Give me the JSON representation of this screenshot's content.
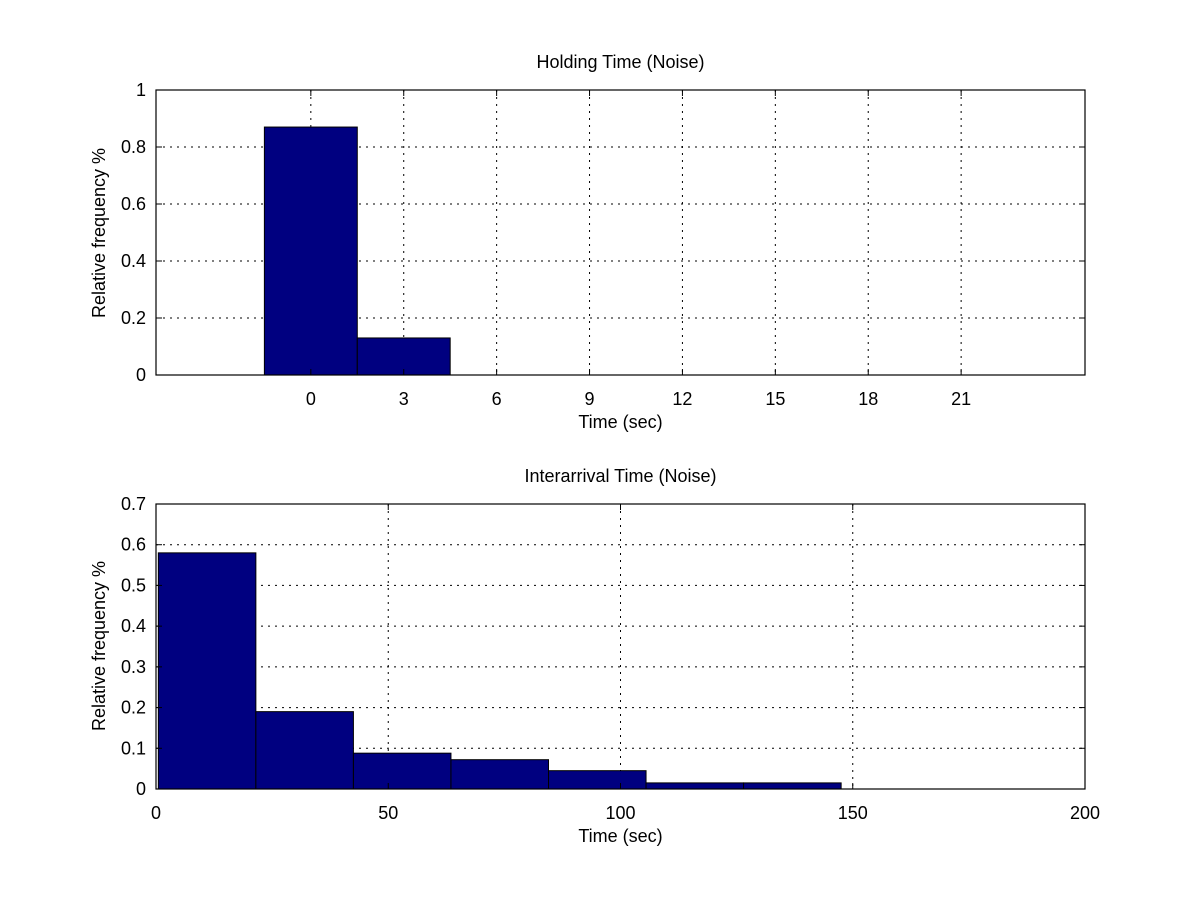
{
  "chart_data": [
    {
      "type": "bar",
      "title": "Holding Time (Noise)",
      "xlabel": "Time (sec)",
      "ylabel": "Relative frequency %",
      "xlim": [
        -5,
        25
      ],
      "ylim": [
        0,
        1
      ],
      "xticks": [
        0,
        3,
        6,
        9,
        12,
        15,
        18,
        21
      ],
      "yticks": [
        0,
        0.2,
        0.4,
        0.6,
        0.8,
        1
      ],
      "ytick_labels": [
        "0",
        "0.2",
        "0.4",
        "0.6",
        "0.8",
        "1"
      ],
      "grid": true,
      "bar_color": "#000080",
      "bin_width": 3,
      "bin_centers": [
        0,
        3
      ],
      "values": [
        0.87,
        0.13
      ]
    },
    {
      "type": "bar",
      "title": "Interarrival Time (Noise)",
      "xlabel": "Time (sec)",
      "ylabel": "Relative frequency %",
      "xlim": [
        0,
        200
      ],
      "ylim": [
        0,
        0.7
      ],
      "xticks": [
        0,
        50,
        100,
        150,
        200
      ],
      "yticks": [
        0,
        0.1,
        0.2,
        0.3,
        0.4,
        0.5,
        0.6,
        0.7
      ],
      "ytick_labels": [
        "0",
        "0.1",
        "0.2",
        "0.3",
        "0.4",
        "0.5",
        "0.6",
        "0.7"
      ],
      "grid": true,
      "bar_color": "#000080",
      "bin_width": 21,
      "bin_centers": [
        11,
        32,
        53,
        74,
        95,
        116,
        137
      ],
      "values": [
        0.58,
        0.19,
        0.088,
        0.072,
        0.045,
        0.015,
        0.015
      ]
    }
  ]
}
